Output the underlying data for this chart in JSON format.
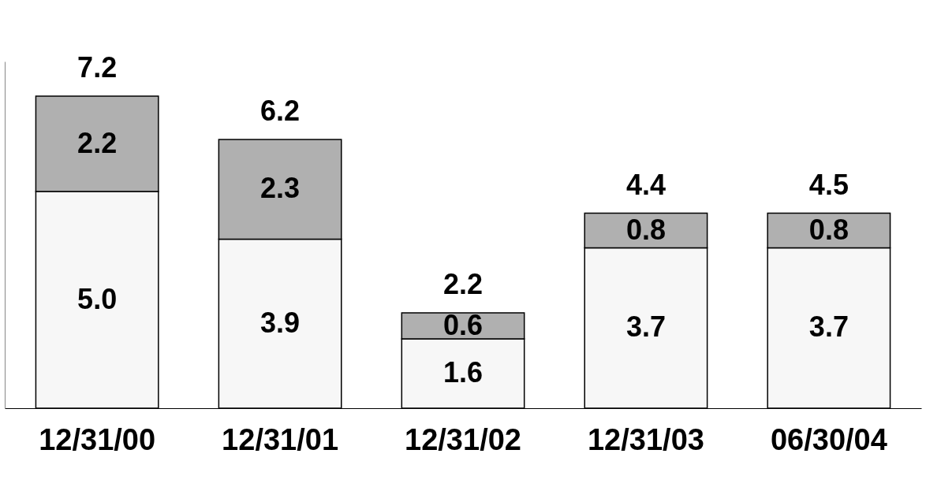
{
  "chart_data": {
    "type": "bar",
    "stacked": true,
    "grid": false,
    "categories": [
      "12/31/00",
      "12/31/01",
      "12/31/02",
      "12/31/03",
      "06/30/04"
    ],
    "series": [
      {
        "color": "#f7f7f7",
        "values": [
          5.0,
          3.9,
          1.6,
          3.7,
          3.7
        ],
        "value_labels": [
          "5.0",
          "3.9",
          "1.6",
          "3.7",
          "3.7"
        ]
      },
      {
        "color": "#b0b0b0",
        "values": [
          2.2,
          2.3,
          0.6,
          0.8,
          0.8
        ],
        "value_labels": [
          "2.2",
          "2.3",
          "0.6",
          "0.8",
          "0.8"
        ]
      }
    ],
    "totals": [
      "7.2",
      "6.2",
      "2.2",
      "4.4",
      "4.5"
    ]
  }
}
